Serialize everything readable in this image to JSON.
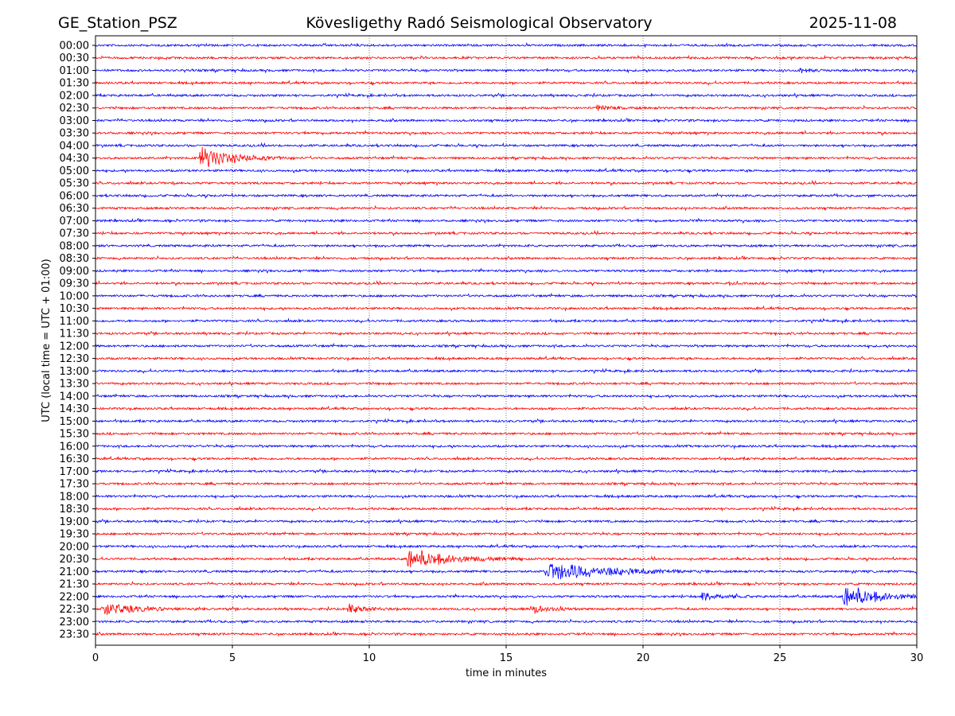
{
  "header": {
    "station": "GE_Station_PSZ",
    "title": "Kövesligethy Radó Seismological Observatory",
    "date": "2025-11-08"
  },
  "chart_data": {
    "type": "line",
    "subtype": "helicorder",
    "xlabel": "time in minutes",
    "ylabel": "UTC (local time = UTC + 01:00)",
    "xlim": [
      0,
      30
    ],
    "xticks": [
      "0",
      "5",
      "10",
      "15",
      "20",
      "25",
      "30"
    ],
    "xtick_values": [
      0,
      5,
      10,
      15,
      20,
      25,
      30
    ],
    "grid": "vertical dotted",
    "row_labels": [
      "00:00",
      "00:30",
      "01:00",
      "01:30",
      "02:00",
      "02:30",
      "03:00",
      "03:30",
      "04:00",
      "04:30",
      "05:00",
      "05:30",
      "06:00",
      "06:30",
      "07:00",
      "07:30",
      "08:00",
      "08:30",
      "09:00",
      "09:30",
      "10:00",
      "10:30",
      "11:00",
      "11:30",
      "12:00",
      "12:30",
      "13:00",
      "13:30",
      "14:00",
      "14:30",
      "15:00",
      "15:30",
      "16:00",
      "16:30",
      "17:00",
      "17:30",
      "18:00",
      "18:30",
      "19:00",
      "19:30",
      "20:00",
      "20:30",
      "21:00",
      "21:30",
      "22:00",
      "22:30",
      "23:00",
      "23:30"
    ],
    "colors": [
      "#0000ff",
      "#ff0000"
    ],
    "noise_amplitude": 0.08,
    "events": [
      {
        "row": "01:00",
        "start": 25.7,
        "duration": 1.2,
        "amplitude": 0.25
      },
      {
        "row": "02:30",
        "start": 18.3,
        "duration": 1.6,
        "amplitude": 0.25
      },
      {
        "row": "04:30",
        "start": 3.8,
        "duration": 3.5,
        "amplitude": 1.0
      },
      {
        "row": "05:30",
        "start": 2.8,
        "duration": 0.4,
        "amplitude": 0.2
      },
      {
        "row": "09:30",
        "start": 23.1,
        "duration": 0.4,
        "amplitude": 0.2
      },
      {
        "row": "20:30",
        "start": 11.4,
        "duration": 4.2,
        "amplitude": 1.0
      },
      {
        "row": "21:00",
        "start": 16.4,
        "duration": 6.0,
        "amplitude": 1.0
      },
      {
        "row": "22:00",
        "start": 22.1,
        "duration": 2.0,
        "amplitude": 0.45
      },
      {
        "row": "22:00",
        "start": 27.3,
        "duration": 3.5,
        "amplitude": 1.15
      },
      {
        "row": "22:30",
        "start": 0.2,
        "duration": 3.8,
        "amplitude": 0.55
      },
      {
        "row": "22:30",
        "start": 9.2,
        "duration": 1.8,
        "amplitude": 0.4
      },
      {
        "row": "22:30",
        "start": 15.9,
        "duration": 1.8,
        "amplitude": 0.45
      }
    ]
  }
}
